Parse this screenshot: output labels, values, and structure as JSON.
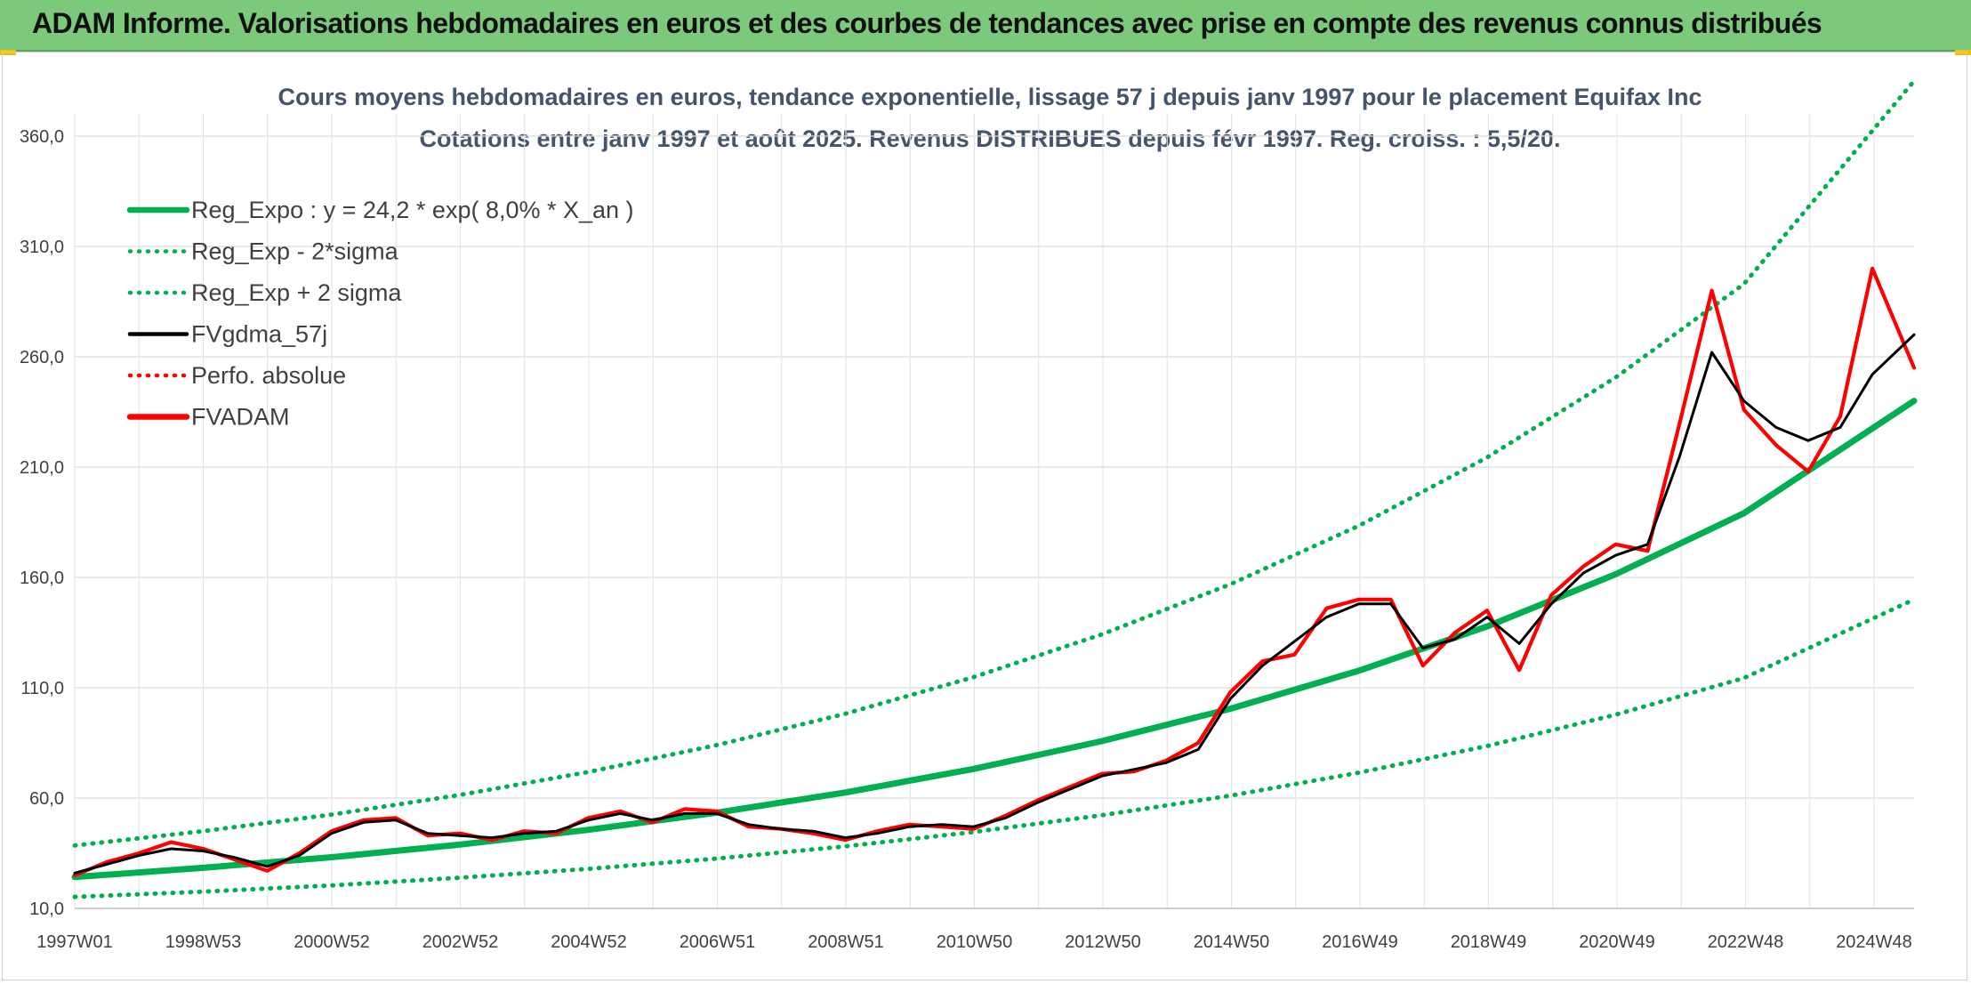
{
  "header": {
    "title": "ADAM Informe. Valorisations hebdomadaires en euros et des courbes de tendances avec prise en compte des revenus connus distribués"
  },
  "chart_data": {
    "type": "line",
    "title": "Cours moyens hebdomadaires en euros, tendance exponentielle, lissage 57 j depuis janv 1997 pour le placement Equifax Inc",
    "subtitle": "Cotations entre janv 1997 et août 2025. Revenus DISTRIBUES depuis févr 1997. Reg. croiss. : 5,5/20.",
    "xlabel": "",
    "ylabel": "",
    "x_ticks": [
      "1997W01",
      "1998W53",
      "2000W52",
      "2002W52",
      "2004W52",
      "2006W51",
      "2008W51",
      "2010W50",
      "2012W50",
      "2014W50",
      "2016W49",
      "2018W49",
      "2020W49",
      "2022W48",
      "2024W48"
    ],
    "y_ticks": [
      "10,0",
      "60,0",
      "110,0",
      "160,0",
      "210,0",
      "260,0",
      "310,0",
      "360,0"
    ],
    "ylim": [
      10,
      380
    ],
    "xlim": [
      1997.0,
      2025.65
    ],
    "grid": true,
    "legend_position": "top-left",
    "series": [
      {
        "name": "Reg_Expo : y = 24,2 * exp( 8,0% *  X_an )",
        "style": "solid-thick",
        "color": "#00b050",
        "x": [
          1997.0,
          1999.0,
          2001.0,
          2003.0,
          2005.0,
          2007.0,
          2009.0,
          2011.0,
          2013.0,
          2015.0,
          2017.0,
          2019.0,
          2021.0,
          2023.0,
          2025.65
        ],
        "y": [
          24.2,
          28.4,
          33.2,
          38.9,
          45.6,
          53.4,
          62.5,
          73.2,
          85.8,
          100.5,
          117.7,
          137.8,
          161.4,
          189.1,
          240.0
        ]
      },
      {
        "name": "Reg_Exp - 2*sigma",
        "style": "dotted",
        "color": "#00b050",
        "x": [
          1997.0,
          1999.0,
          2001.0,
          2003.0,
          2005.0,
          2007.0,
          2009.0,
          2011.0,
          2013.0,
          2015.0,
          2017.0,
          2019.0,
          2021.0,
          2023.0,
          2025.65
        ],
        "y": [
          15.2,
          17.6,
          20.4,
          23.9,
          27.9,
          32.6,
          38.1,
          44.6,
          52.2,
          61.1,
          71.5,
          83.6,
          97.8,
          114.4,
          150.0
        ]
      },
      {
        "name": "Reg_Exp + 2 sigma",
        "style": "dotted",
        "color": "#00b050",
        "x": [
          1997.0,
          1999.0,
          2001.0,
          2003.0,
          2005.0,
          2007.0,
          2009.0,
          2011.0,
          2013.0,
          2015.0,
          2017.0,
          2019.0,
          2021.0,
          2023.0,
          2025.65
        ],
        "y": [
          38.5,
          45.0,
          52.5,
          61.4,
          71.8,
          84.0,
          98.2,
          114.8,
          134.2,
          156.9,
          183.4,
          214.4,
          250.6,
          293.0,
          385.0
        ]
      },
      {
        "name": "FVgdma_57j",
        "style": "solid",
        "color": "#000000",
        "x": [
          1997.0,
          1997.5,
          1998.0,
          1998.5,
          1999.0,
          1999.5,
          2000.0,
          2000.5,
          2001.0,
          2001.5,
          2002.0,
          2002.5,
          2003.0,
          2003.5,
          2004.0,
          2004.5,
          2005.0,
          2005.5,
          2006.0,
          2006.5,
          2007.0,
          2007.5,
          2008.0,
          2008.5,
          2009.0,
          2009.5,
          2010.0,
          2010.5,
          2011.0,
          2011.5,
          2012.0,
          2012.5,
          2013.0,
          2013.5,
          2014.0,
          2014.5,
          2015.0,
          2015.5,
          2016.0,
          2016.5,
          2017.0,
          2017.5,
          2018.0,
          2018.5,
          2019.0,
          2019.5,
          2020.0,
          2020.5,
          2021.0,
          2021.5,
          2022.0,
          2022.5,
          2023.0,
          2023.5,
          2024.0,
          2024.5,
          2025.0,
          2025.65
        ],
        "y": [
          26,
          30,
          34,
          37,
          36,
          33,
          29,
          34,
          44,
          49,
          50,
          44,
          43,
          42,
          44,
          45,
          50,
          53,
          50,
          53,
          53,
          48,
          46,
          45,
          42,
          44,
          47,
          48,
          47,
          51,
          58,
          64,
          70,
          73,
          76,
          82,
          105,
          120,
          131,
          142,
          148,
          148,
          128,
          132,
          142,
          130,
          148,
          162,
          170,
          175,
          215,
          262,
          240,
          228,
          222,
          228,
          252,
          270
        ]
      },
      {
        "name": "Perfo. absolue",
        "style": "dotted",
        "color": "#ff0000",
        "x": [],
        "y": []
      },
      {
        "name": "FVADAM",
        "style": "solid-thick",
        "color": "#ff0000",
        "x": [
          1997.0,
          1997.5,
          1998.0,
          1998.5,
          1999.0,
          1999.5,
          2000.0,
          2000.5,
          2001.0,
          2001.5,
          2002.0,
          2002.5,
          2003.0,
          2003.5,
          2004.0,
          2004.5,
          2005.0,
          2005.5,
          2006.0,
          2006.5,
          2007.0,
          2007.5,
          2008.0,
          2008.5,
          2009.0,
          2009.5,
          2010.0,
          2010.5,
          2011.0,
          2011.5,
          2012.0,
          2012.5,
          2013.0,
          2013.5,
          2014.0,
          2014.5,
          2015.0,
          2015.5,
          2016.0,
          2016.5,
          2017.0,
          2017.5,
          2018.0,
          2018.5,
          2019.0,
          2019.5,
          2020.0,
          2020.5,
          2021.0,
          2021.5,
          2022.0,
          2022.5,
          2023.0,
          2023.5,
          2024.0,
          2024.5,
          2025.0,
          2025.65
        ],
        "y": [
          25,
          31,
          35,
          40,
          37,
          32,
          27,
          35,
          45,
          50,
          51,
          43,
          44,
          41,
          45,
          44,
          51,
          54,
          49,
          55,
          54,
          47,
          46,
          44,
          41,
          45,
          48,
          47,
          46,
          52,
          59,
          65,
          71,
          72,
          77,
          85,
          108,
          122,
          125,
          146,
          150,
          150,
          120,
          135,
          145,
          118,
          152,
          165,
          175,
          172,
          230,
          290,
          236,
          220,
          208,
          233,
          300,
          255
        ]
      }
    ]
  }
}
